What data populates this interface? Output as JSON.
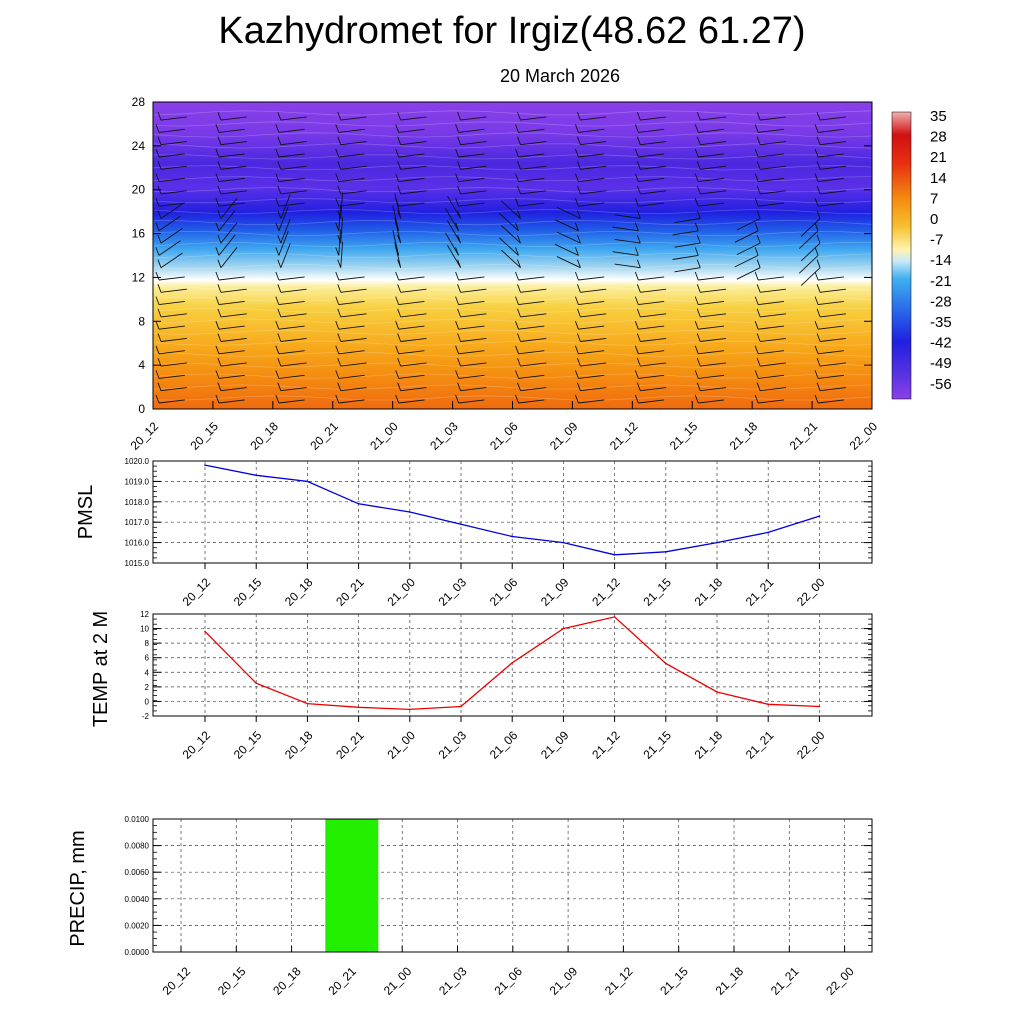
{
  "page": {
    "title": "Kazhydromet for Irgiz(48.62 61.27)",
    "subtitle": "20 March 2026"
  },
  "colors": {
    "pmsl_line": "#0000dd",
    "temp_line": "#ee0000",
    "precip_bar": "#22ee00"
  },
  "chart_data": [
    {
      "type": "heatmap",
      "name": "cross-section",
      "x_ticks": [
        "20_12",
        "20_15",
        "20_18",
        "20_21",
        "21_00",
        "21_03",
        "21_06",
        "21_09",
        "21_12",
        "21_15",
        "21_18",
        "21_21",
        "22_00"
      ],
      "y_ticks": [
        0,
        4,
        8,
        12,
        16,
        20,
        24,
        28
      ],
      "ylim": [
        0,
        28
      ],
      "colorbar_labels": [
        "35",
        "28",
        "21",
        "14",
        "7",
        "0",
        "-7",
        "-14",
        "-21",
        "-28",
        "-35",
        "-42",
        "-49",
        "-56"
      ],
      "wind_barbs": true
    },
    {
      "type": "line",
      "name": "pmsl",
      "ylabel": "PMSL",
      "categories": [
        "20_12",
        "20_15",
        "20_18",
        "20_21",
        "21_00",
        "21_03",
        "21_06",
        "21_09",
        "21_12",
        "21_15",
        "21_18",
        "21_21",
        "22_00"
      ],
      "values": [
        1019.8,
        1019.3,
        1019.0,
        1017.9,
        1017.5,
        1016.9,
        1016.3,
        1016.0,
        1015.4,
        1015.55,
        1016.0,
        1016.5,
        1017.3
      ],
      "ylim": [
        1015.0,
        1020.0
      ],
      "y_ticks": [
        "1015.0",
        "1016.0",
        "1017.0",
        "1018.0",
        "1019.0",
        "1020.0"
      ],
      "grid": true
    },
    {
      "type": "line",
      "name": "temp",
      "ylabel": "TEMP at 2 M",
      "categories": [
        "20_12",
        "20_15",
        "20_18",
        "20_21",
        "21_00",
        "21_03",
        "21_06",
        "21_09",
        "21_12",
        "21_15",
        "21_18",
        "21_21",
        "22_00"
      ],
      "values": [
        9.6,
        2.5,
        -0.3,
        -0.8,
        -1.1,
        -0.7,
        5.3,
        10.0,
        11.6,
        5.2,
        1.3,
        -0.4,
        -0.7
      ],
      "ylim": [
        -2,
        12
      ],
      "y_ticks": [
        "-2",
        "0",
        "2",
        "4",
        "6",
        "8",
        "10",
        "12"
      ],
      "grid": true
    },
    {
      "type": "bar",
      "name": "precip",
      "ylabel": "PRECIP, mm",
      "categories": [
        "20_12",
        "20_15",
        "20_18",
        "20_21",
        "21_00",
        "21_03",
        "21_06",
        "21_09",
        "21_12",
        "21_15",
        "21_18",
        "21_21",
        "22_00"
      ],
      "values": [
        0,
        0,
        0,
        0.01,
        0,
        0,
        0,
        0,
        0,
        0,
        0,
        0,
        0
      ],
      "ylim": [
        0,
        0.01
      ],
      "y_ticks": [
        "0.0000",
        "0.0020",
        "0.0040",
        "0.0060",
        "0.0080",
        "0.0100"
      ],
      "grid": true
    }
  ]
}
